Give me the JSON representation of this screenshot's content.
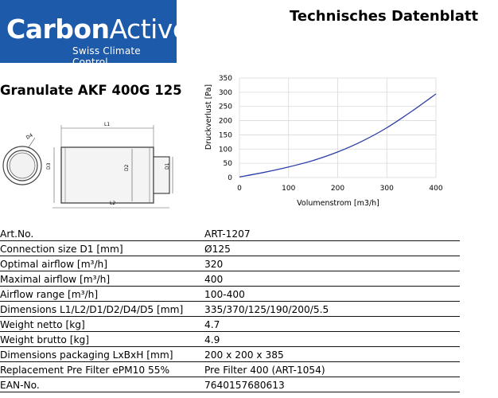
{
  "header": {
    "logo": {
      "main_bold": "Carbon",
      "main_light": "Active",
      "sub": "Swiss Climate Control"
    },
    "title": "Technisches Datenblatt"
  },
  "product": {
    "name": "Granulate AKF 400G 125"
  },
  "drawing": {
    "labels": {
      "l1": "L1",
      "l2": "L2",
      "d1": "D1",
      "d2": "D2",
      "d3": "D3",
      "d4": "D4"
    }
  },
  "chart_data": {
    "type": "line",
    "title": "",
    "xlabel": "Volumenstrom  [m3/h]",
    "ylabel": "Druckverlust  [Pa]",
    "xlim": [
      0,
      400
    ],
    "ylim": [
      0,
      350
    ],
    "xticks": [
      0,
      100,
      200,
      300,
      400
    ],
    "yticks": [
      0,
      50,
      100,
      150,
      200,
      250,
      300,
      350
    ],
    "grid": true,
    "line_color": "#2b3ea8",
    "x": [
      0,
      50,
      100,
      150,
      200,
      250,
      300,
      350,
      400
    ],
    "y": [
      2,
      18,
      37,
      60,
      90,
      128,
      175,
      232,
      294
    ]
  },
  "specs": {
    "rows": [
      {
        "label": "Art.No.",
        "value": "ART-1207"
      },
      {
        "label": "Connection size D1 [mm]",
        "value": "Ø125"
      },
      {
        "label": "Optimal airflow [m³/h]",
        "value": "320"
      },
      {
        "label": "Maximal airflow [m³/h]",
        "value": "400"
      },
      {
        "label": "Airflow range [m³/h]",
        "value": "100-400"
      },
      {
        "label": "Dimensions L1/L2/D1/D2/D4/D5 [mm]",
        "value": "335/370/125/190/200/5.5"
      },
      {
        "label": "Weight netto [kg]",
        "value": "4.7"
      },
      {
        "label": "Weight brutto [kg]",
        "value": "4.9"
      },
      {
        "label": "Dimensions packaging LxBxH [mm]",
        "value": "200 x 200 x 385"
      },
      {
        "label": "Replacement Pre Filter ePM10 55%",
        "value": "Pre Filter 400 (ART-1054)"
      },
      {
        "label": "EAN-No.",
        "value": "7640157680613"
      }
    ]
  }
}
